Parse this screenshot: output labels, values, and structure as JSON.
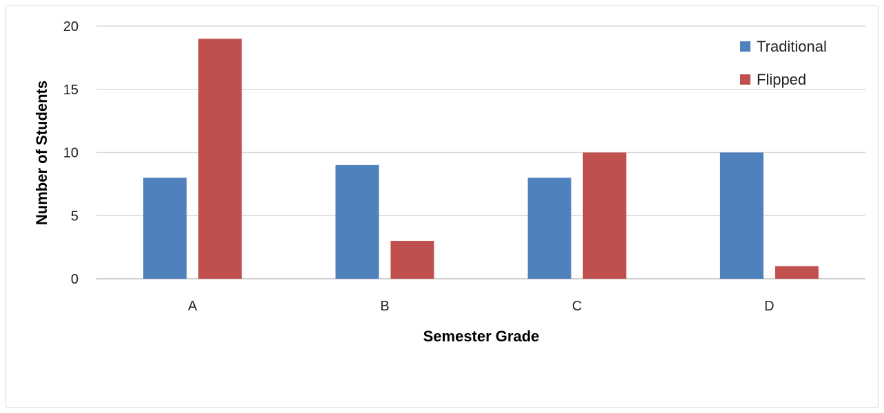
{
  "chart_data": {
    "type": "bar",
    "categories": [
      "A",
      "B",
      "C",
      "D"
    ],
    "series": [
      {
        "name": "Traditional",
        "values": [
          8,
          9,
          8,
          10
        ],
        "color": "#4f81bd"
      },
      {
        "name": "Flipped",
        "values": [
          19,
          3,
          10,
          1
        ],
        "color": "#c0504d"
      }
    ],
    "xlabel": "Semester Grade",
    "ylabel": "Number of Students",
    "ylim": [
      0,
      20
    ],
    "yticks": [
      0,
      5,
      10,
      15,
      20
    ],
    "grid": true,
    "legend_position": "top-right"
  }
}
